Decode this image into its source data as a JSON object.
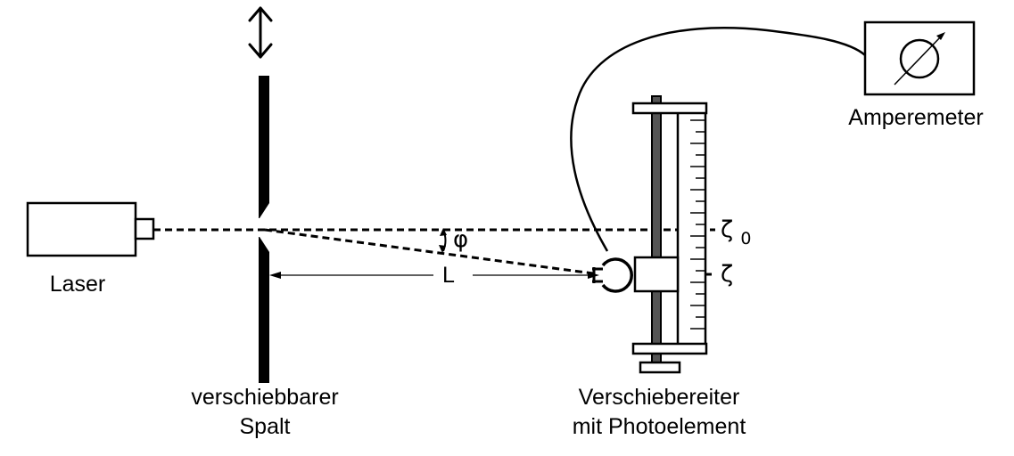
{
  "labels": {
    "laser": "Laser",
    "slit_line1": "verschiebbarer",
    "slit_line2": "Spalt",
    "rider_line1": "Verschiebereiter",
    "rider_line2": "mit Photoelement",
    "ammeter": "Amperemeter",
    "distance": "L",
    "angle": "φ",
    "zeta": "ζ",
    "zeta0_symbol": "ζ",
    "zeta0_subscript": "0"
  },
  "colors": {
    "ink": "#000000",
    "rod": "#555555",
    "background": "#ffffff"
  },
  "icons": {
    "slit_move": "double-arrow-vertical-icon",
    "ammeter": "ammeter-meter-icon",
    "photocell": "photocell-icon"
  }
}
